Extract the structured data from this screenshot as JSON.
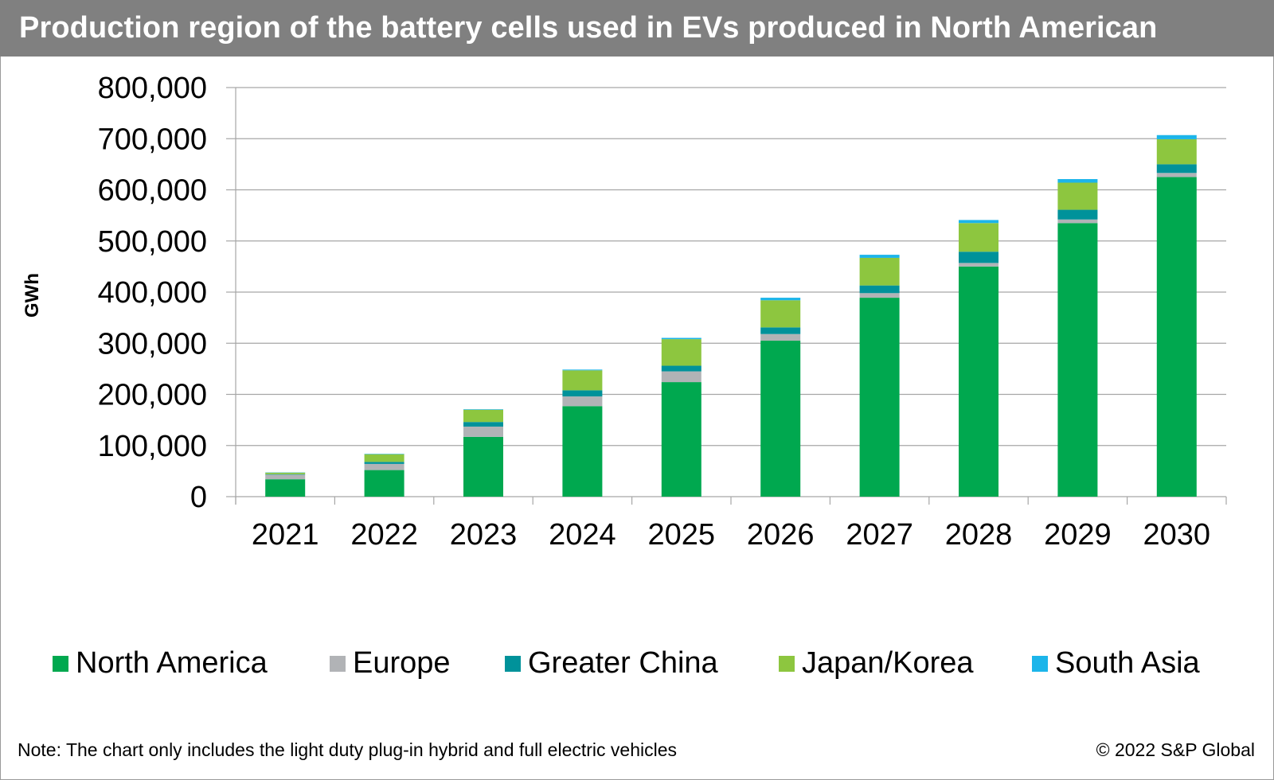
{
  "header": {
    "title": "Production region of the battery cells used in EVs produced in North American"
  },
  "footer": {
    "note": "Note: The chart only includes the light duty plug-in hybrid and full electric vehicles",
    "copyright": "© 2022 S&P Global"
  },
  "chart_data": {
    "type": "bar",
    "stacked": true,
    "title": "Production region of the battery cells used in EVs produced in North American",
    "xlabel": "",
    "ylabel": "GWh",
    "ylim": [
      0,
      800000
    ],
    "yticks": [
      0,
      100000,
      200000,
      300000,
      400000,
      500000,
      600000,
      700000,
      800000
    ],
    "ytick_labels": [
      "0",
      "100,000",
      "200,000",
      "300,000",
      "400,000",
      "500,000",
      "600,000",
      "700,000",
      "800,000"
    ],
    "grid": true,
    "legend_position": "bottom",
    "categories": [
      "2021",
      "2022",
      "2023",
      "2024",
      "2025",
      "2026",
      "2027",
      "2028",
      "2029",
      "2030"
    ],
    "series": [
      {
        "name": "North America",
        "color": "#00A84F",
        "values": [
          34000,
          52000,
          117000,
          177000,
          224000,
          305000,
          389000,
          450000,
          535000,
          625000
        ]
      },
      {
        "name": "Europe",
        "color": "#B1B3B6",
        "values": [
          9000,
          12000,
          20000,
          19000,
          21000,
          13000,
          9000,
          7000,
          7000,
          8000
        ]
      },
      {
        "name": "Greater China",
        "color": "#00929A",
        "values": [
          1000,
          4000,
          9000,
          12000,
          11000,
          13000,
          15000,
          22000,
          19000,
          17000
        ]
      },
      {
        "name": "Japan/Korea",
        "color": "#8DC63F",
        "values": [
          3000,
          15000,
          24000,
          39000,
          52000,
          53000,
          54000,
          56000,
          53000,
          49000
        ]
      },
      {
        "name": "South Asia",
        "color": "#1CB5EA",
        "values": [
          500,
          800,
          1000,
          1500,
          2500,
          5000,
          6000,
          6000,
          7000,
          8000
        ]
      }
    ]
  }
}
